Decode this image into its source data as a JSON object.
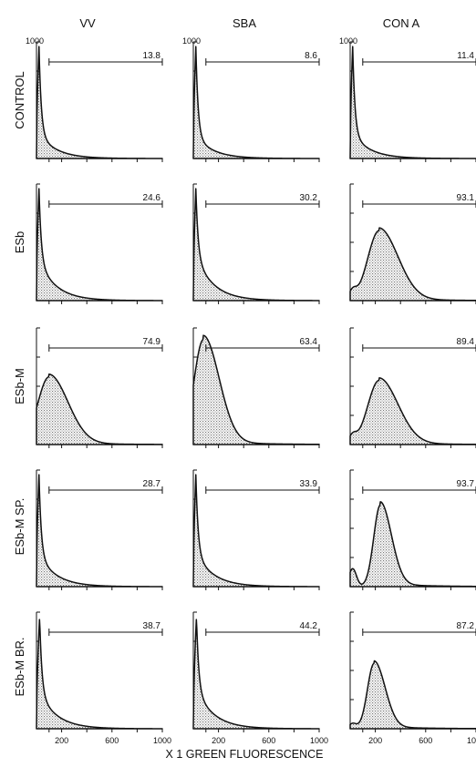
{
  "chart_data": {
    "type": "area",
    "column_titles": [
      "VV",
      "SBA",
      "CON A"
    ],
    "row_labels": [
      "CONTROL",
      "ESb",
      "ESb-M",
      "ESb-M SP.",
      "ESb-M BR."
    ],
    "xlabel": "X 1 GREEN FLUORESCENCE",
    "xlim": [
      0,
      1000
    ],
    "xticks": [
      "200",
      "600",
      "1000"
    ],
    "xtick_values": [
      200,
      600,
      1000
    ],
    "ymax_label": "1000",
    "ylim": [
      0,
      1000
    ],
    "fill": "stippled",
    "panels": [
      {
        "row": 0,
        "col": 0,
        "gate": "13.8",
        "curve": "spike",
        "peak_x": 20,
        "peak_y": 960,
        "tail": 0.22
      },
      {
        "row": 0,
        "col": 1,
        "gate": "8.6",
        "curve": "spike",
        "peak_x": 20,
        "peak_y": 960,
        "tail": 0.2
      },
      {
        "row": 0,
        "col": 2,
        "gate": "11.4",
        "curve": "spike",
        "peak_x": 20,
        "peak_y": 960,
        "tail": 0.22
      },
      {
        "row": 1,
        "col": 0,
        "gate": "24.6",
        "curve": "spike",
        "peak_x": 20,
        "peak_y": 960,
        "tail": 0.35
      },
      {
        "row": 1,
        "col": 1,
        "gate": "30.2",
        "curve": "spike",
        "peak_x": 20,
        "peak_y": 960,
        "tail": 0.4
      },
      {
        "row": 1,
        "col": 2,
        "gate": "93.1",
        "curve": "hump",
        "peak_x": 230,
        "peak_y": 600,
        "width": 120,
        "shoulder": 0.12
      },
      {
        "row": 2,
        "col": 0,
        "gate": "74.9",
        "curve": "hump",
        "peak_x": 100,
        "peak_y": 580,
        "width": 120,
        "shoulder": 0.0
      },
      {
        "row": 2,
        "col": 1,
        "gate": "63.4",
        "curve": "hump",
        "peak_x": 80,
        "peak_y": 900,
        "width": 100,
        "shoulder": 0.0
      },
      {
        "row": 2,
        "col": 2,
        "gate": "89.4",
        "curve": "hump",
        "peak_x": 230,
        "peak_y": 550,
        "width": 120,
        "shoulder": 0.12
      },
      {
        "row": 3,
        "col": 0,
        "gate": "28.7",
        "curve": "spike",
        "peak_x": 20,
        "peak_y": 960,
        "tail": 0.28
      },
      {
        "row": 3,
        "col": 1,
        "gate": "33.9",
        "curve": "spike",
        "peak_x": 20,
        "peak_y": 960,
        "tail": 0.3
      },
      {
        "row": 3,
        "col": 2,
        "gate": "93.7",
        "curve": "hump",
        "peak_x": 240,
        "peak_y": 700,
        "width": 70,
        "shoulder": 0.22
      },
      {
        "row": 4,
        "col": 0,
        "gate": "38.7",
        "curve": "spike",
        "peak_x": 25,
        "peak_y": 960,
        "tail": 0.32
      },
      {
        "row": 4,
        "col": 1,
        "gate": "44.2",
        "curve": "spike",
        "peak_x": 25,
        "peak_y": 960,
        "tail": 0.35
      },
      {
        "row": 4,
        "col": 2,
        "gate": "87.2",
        "curve": "hump",
        "peak_x": 190,
        "peak_y": 560,
        "width": 70,
        "shoulder": 0.08
      }
    ],
    "gate_range": [
      100,
      1000
    ]
  }
}
